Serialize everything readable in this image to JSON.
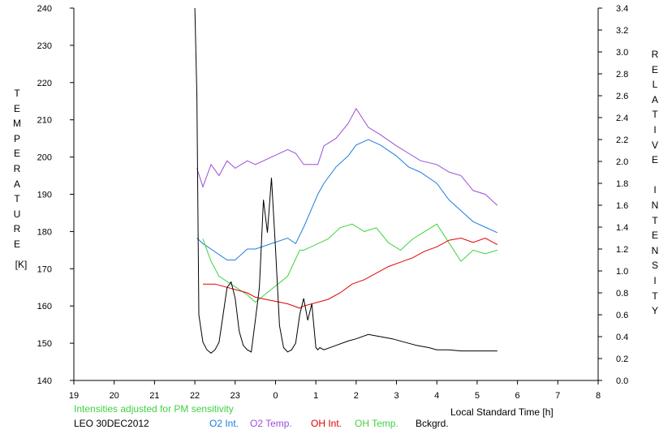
{
  "chart_data": {
    "type": "line",
    "title": "",
    "station": "LEO 30DEC2012",
    "note": "Intensities adjusted for PM sensitivity",
    "xlabel": "Local Standard Time [h]",
    "ylabel_left_letters": [
      "T",
      "E",
      "M",
      "P",
      "E",
      "R",
      "A",
      "T",
      "U",
      "R",
      "E"
    ],
    "ylabel_left_unit": "[K]",
    "ylabel_right_letters": [
      "R",
      "E",
      "L",
      "A",
      "T",
      "I",
      "V",
      "E",
      "",
      "I",
      "N",
      "T",
      "E",
      "N",
      "S",
      "I",
      "T",
      "Y"
    ],
    "x_range_hours_since_1900": [
      19,
      32
    ],
    "x_ticks": [
      "19",
      "20",
      "21",
      "22",
      "23",
      "0",
      "1",
      "2",
      "3",
      "4",
      "5",
      "6",
      "7",
      "8"
    ],
    "y_left_range": [
      140,
      240
    ],
    "y_left_ticks": [
      "140",
      "150",
      "160",
      "170",
      "180",
      "190",
      "200",
      "210",
      "220",
      "230",
      "240"
    ],
    "y_right_range": [
      0.0,
      3.4
    ],
    "y_right_ticks": [
      "0.0",
      "0.2",
      "0.4",
      "0.6",
      "0.8",
      "1.0",
      "1.2",
      "1.4",
      "1.6",
      "1.8",
      "2.0",
      "2.2",
      "2.4",
      "2.6",
      "2.8",
      "3.0",
      "3.2",
      "3.4"
    ],
    "grid": false,
    "legend_placement": "bottom",
    "series": [
      {
        "name": "O2 Int.",
        "axis": "right",
        "color": "#1e7de0",
        "x": [
          22.05,
          22.2,
          22.4,
          22.6,
          22.8,
          23.0,
          23.3,
          23.5,
          24.3,
          24.5,
          24.7,
          25.05,
          25.2,
          25.5,
          25.8,
          26.0,
          26.3,
          26.6,
          27.0,
          27.3,
          27.6,
          28.0,
          28.3,
          28.6,
          28.9,
          29.2,
          29.5
        ],
        "y": [
          1.3,
          1.25,
          1.2,
          1.15,
          1.1,
          1.1,
          1.2,
          1.2,
          1.3,
          1.25,
          1.4,
          1.7,
          1.8,
          1.95,
          2.05,
          2.15,
          2.2,
          2.15,
          2.05,
          1.95,
          1.9,
          1.8,
          1.65,
          1.55,
          1.45,
          1.4,
          1.35
        ]
      },
      {
        "name": "O2 Temp.",
        "axis": "left",
        "color": "#9b4fd6",
        "x": [
          22.05,
          22.2,
          22.4,
          22.6,
          22.8,
          23.0,
          23.3,
          23.5,
          24.3,
          24.5,
          24.7,
          25.05,
          25.2,
          25.5,
          25.8,
          26.0,
          26.3,
          26.6,
          27.0,
          27.3,
          27.6,
          28.0,
          28.3,
          28.6,
          28.9,
          29.2,
          29.5
        ],
        "y": [
          197,
          192,
          198,
          195,
          199,
          197,
          199,
          198,
          202,
          201,
          198,
          198,
          203,
          205,
          209,
          213,
          208,
          206,
          203,
          201,
          199,
          198,
          196,
          195,
          191,
          190,
          187
        ]
      },
      {
        "name": "OH Int.",
        "axis": "right",
        "color": "#e00000",
        "x": [
          22.2,
          22.5,
          23.3,
          23.5,
          24.3,
          24.6,
          24.7,
          25.3,
          25.6,
          25.9,
          26.2,
          26.5,
          26.8,
          27.1,
          27.4,
          27.7,
          28.0,
          28.3,
          28.6,
          28.9,
          29.2,
          29.5
        ],
        "y": [
          0.88,
          0.88,
          0.8,
          0.76,
          0.7,
          0.66,
          0.68,
          0.74,
          0.8,
          0.88,
          0.92,
          0.98,
          1.04,
          1.08,
          1.12,
          1.18,
          1.22,
          1.28,
          1.3,
          1.26,
          1.3,
          1.24
        ]
      },
      {
        "name": "OH Temp.",
        "axis": "left",
        "color": "#3fd13f",
        "x": [
          22.2,
          22.4,
          22.6,
          23.3,
          23.5,
          24.3,
          24.6,
          24.7,
          25.3,
          25.6,
          25.9,
          26.2,
          26.5,
          26.8,
          27.1,
          27.4,
          27.7,
          28.0,
          28.3,
          28.6,
          28.9,
          29.2,
          29.5
        ],
        "y": [
          178,
          172,
          168,
          163,
          161,
          168,
          175,
          175,
          178,
          181,
          182,
          180,
          181,
          177,
          175,
          178,
          180,
          182,
          177,
          172,
          175,
          174,
          175
        ]
      },
      {
        "name": "Bckgrd.",
        "axis": "right",
        "color": "#000000",
        "x": [
          22.0,
          22.05,
          22.1,
          22.2,
          22.3,
          22.4,
          22.5,
          22.6,
          22.7,
          22.8,
          22.9,
          23.0,
          23.1,
          23.2,
          23.3,
          23.4,
          23.5,
          23.6,
          23.7,
          23.8,
          23.9,
          24.0,
          24.1,
          24.2,
          24.3,
          24.4,
          24.5,
          24.6,
          24.7,
          24.8,
          24.9,
          25.0,
          25.05,
          25.1,
          25.2,
          25.5,
          25.8,
          26.0,
          26.3,
          26.6,
          26.9,
          27.2,
          27.5,
          27.8,
          28.0,
          28.3,
          28.6,
          28.9,
          29.2,
          29.5
        ],
        "y": [
          3.4,
          2.6,
          0.6,
          0.35,
          0.28,
          0.25,
          0.28,
          0.35,
          0.6,
          0.85,
          0.9,
          0.75,
          0.45,
          0.32,
          0.28,
          0.26,
          0.55,
          0.85,
          1.65,
          1.35,
          1.85,
          1.2,
          0.5,
          0.3,
          0.26,
          0.28,
          0.34,
          0.6,
          0.75,
          0.55,
          0.7,
          0.3,
          0.28,
          0.3,
          0.28,
          0.32,
          0.36,
          0.38,
          0.42,
          0.4,
          0.38,
          0.35,
          0.32,
          0.3,
          0.28,
          0.28,
          0.27,
          0.27,
          0.27,
          0.27
        ]
      }
    ]
  }
}
